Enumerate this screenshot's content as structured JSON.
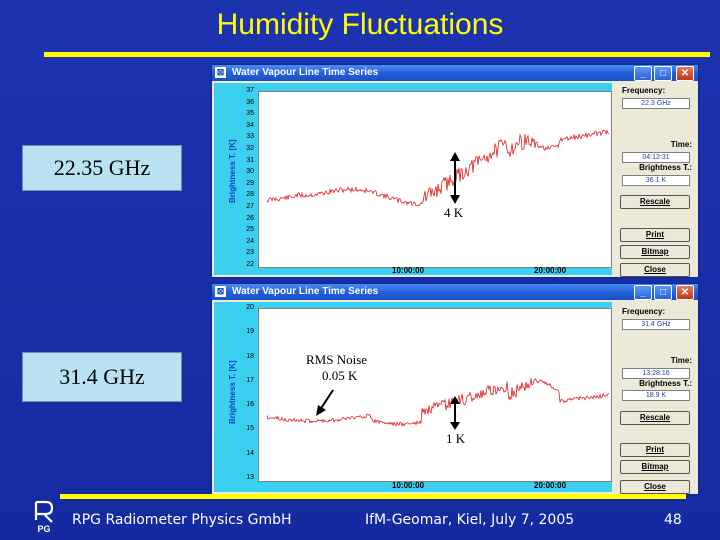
{
  "slide": {
    "title": "Humidity Fluctuations",
    "footer_left": "RPG Radiometer Physics GmbH",
    "footer_center": "IfM-Geomar, Kiel, July 7, 2005",
    "page_number": "48",
    "logo_text": "RPG",
    "colors": {
      "background": "#1a2fa8",
      "title": "#ffff00",
      "trace": "#e02020"
    }
  },
  "freq_label_top": "22.35 GHz",
  "freq_label_bottom": "31.4 GHz",
  "window_top": {
    "title": "Water Vapour Line Time Series",
    "yaxis_label": "Brightness T. [K]",
    "yticks": [
      "37",
      "36",
      "35",
      "34",
      "33",
      "32",
      "31",
      "30",
      "29",
      "28",
      "27",
      "26",
      "25",
      "24",
      "23",
      "22"
    ],
    "xticks": [
      "10:00:00",
      "20:00:00"
    ],
    "annotation": "4 K",
    "frequency_label": "Frequency:",
    "frequency_value": "22.3 GHz",
    "time_label": "Time:",
    "time_value": "04:12:31",
    "brightness_label": "Brightness T.:",
    "brightness_value": "36.1 K",
    "buttons": [
      "Rescale",
      "Print",
      "Bitmap",
      "Close"
    ]
  },
  "window_bottom": {
    "title": "Water Vapour Line Time Series",
    "yaxis_label": "Brightness T. [K]",
    "yticks": [
      "20",
      "19",
      "18",
      "17",
      "16",
      "15",
      "14",
      "13"
    ],
    "xticks": [
      "10:00:00",
      "20:00:00"
    ],
    "annotation_rms_line1": "RMS Noise",
    "annotation_rms_line2": "0.05 K",
    "annotation": "1 K",
    "frequency_label": "Frequency:",
    "frequency_value": "31.4 GHz",
    "time_label": "Time:",
    "time_value": "13:28:16",
    "brightness_label": "Brightness T.:",
    "brightness_value": "18.9 K",
    "buttons": [
      "Rescale",
      "Print",
      "Bitmap",
      "Close"
    ]
  }
}
